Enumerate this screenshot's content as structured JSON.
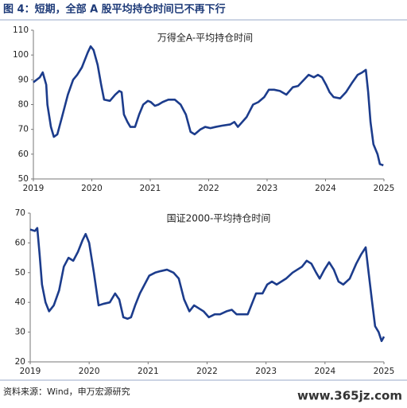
{
  "title": "图 4：短期，全部 A 股平均持仓时间已不再下行",
  "source": "资料来源：Wind，申万宏源研究",
  "watermark": "www.365jz.com",
  "chart_data": [
    {
      "type": "line",
      "x": [
        2019.0,
        2019.11,
        2019.16,
        2019.22,
        2019.24,
        2019.3,
        2019.35,
        2019.41,
        2019.49,
        2019.59,
        2019.68,
        2019.75,
        2019.83,
        2019.93,
        2019.98,
        2020.03,
        2020.1,
        2020.16,
        2020.21,
        2020.31,
        2020.4,
        2020.47,
        2020.51,
        2020.55,
        2020.61,
        2020.66,
        2020.74,
        2020.81,
        2020.88,
        2020.96,
        2021.01,
        2021.08,
        2021.14,
        2021.21,
        2021.31,
        2021.42,
        2021.52,
        2021.61,
        2021.69,
        2021.76,
        2021.86,
        2021.94,
        2022.03,
        2022.12,
        2022.23,
        2022.37,
        2022.44,
        2022.5,
        2022.65,
        2022.76,
        2022.85,
        2022.95,
        2023.03,
        2023.12,
        2023.22,
        2023.33,
        2023.44,
        2023.53,
        2023.63,
        2023.71,
        2023.8,
        2023.87,
        2023.94,
        2024.01,
        2024.07,
        2024.14,
        2024.25,
        2024.35,
        2024.46,
        2024.55,
        2024.63,
        2024.69,
        2024.73,
        2024.77,
        2024.82,
        2024.89,
        2024.93,
        2024.99
      ],
      "series": [
        {
          "name": "万得全A-平均持仓时间",
          "color": "#1c3c8c",
          "values": [
            89,
            91,
            93,
            88,
            80,
            71,
            67,
            68,
            75,
            84,
            90,
            92,
            95,
            101,
            103.5,
            102,
            96,
            88,
            82,
            81.5,
            84,
            85.5,
            85,
            76,
            73,
            71,
            71,
            76,
            80,
            81.5,
            81,
            79.5,
            80,
            81,
            82,
            82,
            80,
            76,
            69,
            68,
            70,
            71,
            70.5,
            71,
            71.5,
            72,
            73,
            71,
            75,
            80,
            81,
            83,
            86,
            86,
            85.5,
            84,
            87,
            87.5,
            90,
            92,
            91,
            92,
            91,
            88,
            85,
            83,
            82.5,
            85,
            89,
            92,
            93,
            94,
            85,
            73,
            64,
            60,
            56,
            55.5
          ]
        }
      ],
      "xlim": [
        2019,
        2025
      ],
      "xticks": [
        2019,
        2020,
        2021,
        2022,
        2023,
        2024,
        2025
      ],
      "ylim": [
        50,
        110
      ],
      "yticks": [
        50,
        60,
        70,
        80,
        90,
        100,
        110
      ]
    },
    {
      "type": "line",
      "x": [
        2019.0,
        2019.08,
        2019.12,
        2019.16,
        2019.2,
        2019.26,
        2019.32,
        2019.4,
        2019.49,
        2019.57,
        2019.65,
        2019.73,
        2019.81,
        2019.89,
        2019.94,
        2020.0,
        2020.08,
        2020.16,
        2020.24,
        2020.35,
        2020.44,
        2020.51,
        2020.58,
        2020.65,
        2020.71,
        2020.78,
        2020.86,
        2020.94,
        2021.02,
        2021.12,
        2021.21,
        2021.32,
        2021.43,
        2021.52,
        2021.61,
        2021.7,
        2021.78,
        2021.86,
        2021.94,
        2022.03,
        2022.13,
        2022.22,
        2022.33,
        2022.42,
        2022.5,
        2022.6,
        2022.69,
        2022.77,
        2022.83,
        2022.94,
        2023.02,
        2023.1,
        2023.18,
        2023.26,
        2023.34,
        2023.45,
        2023.53,
        2023.61,
        2023.69,
        2023.77,
        2023.85,
        2023.91,
        2023.99,
        2024.07,
        2024.15,
        2024.23,
        2024.31,
        2024.42,
        2024.53,
        2024.61,
        2024.69,
        2024.74,
        2024.8,
        2024.85,
        2024.91,
        2024.96,
        2025.0
      ],
      "series": [
        {
          "name": "国证2000-平均持仓时间",
          "color": "#1c3c8c",
          "values": [
            64.5,
            64,
            65,
            56,
            46,
            40,
            37,
            39,
            44,
            52,
            55,
            54,
            57,
            61,
            63,
            60,
            50,
            39,
            39.5,
            40,
            43,
            41,
            35,
            34.5,
            35,
            39,
            43,
            46,
            49,
            50,
            50.5,
            51,
            50,
            48,
            41,
            37,
            39,
            38,
            37,
            35,
            36,
            36,
            37,
            37.5,
            36,
            36,
            36,
            40,
            43,
            43,
            46,
            47,
            46,
            47,
            48,
            50,
            51,
            52,
            54,
            53,
            50,
            48,
            51,
            53.5,
            51,
            47,
            46,
            48,
            53,
            56,
            58.5,
            50,
            40,
            32,
            30,
            27,
            28.5
          ]
        }
      ],
      "xlim": [
        2019,
        2025
      ],
      "xticks": [
        2019,
        2020,
        2021,
        2022,
        2023,
        2024,
        2025
      ],
      "ylim": [
        20,
        70
      ],
      "yticks": [
        20,
        30,
        40,
        50,
        60,
        70
      ]
    }
  ]
}
